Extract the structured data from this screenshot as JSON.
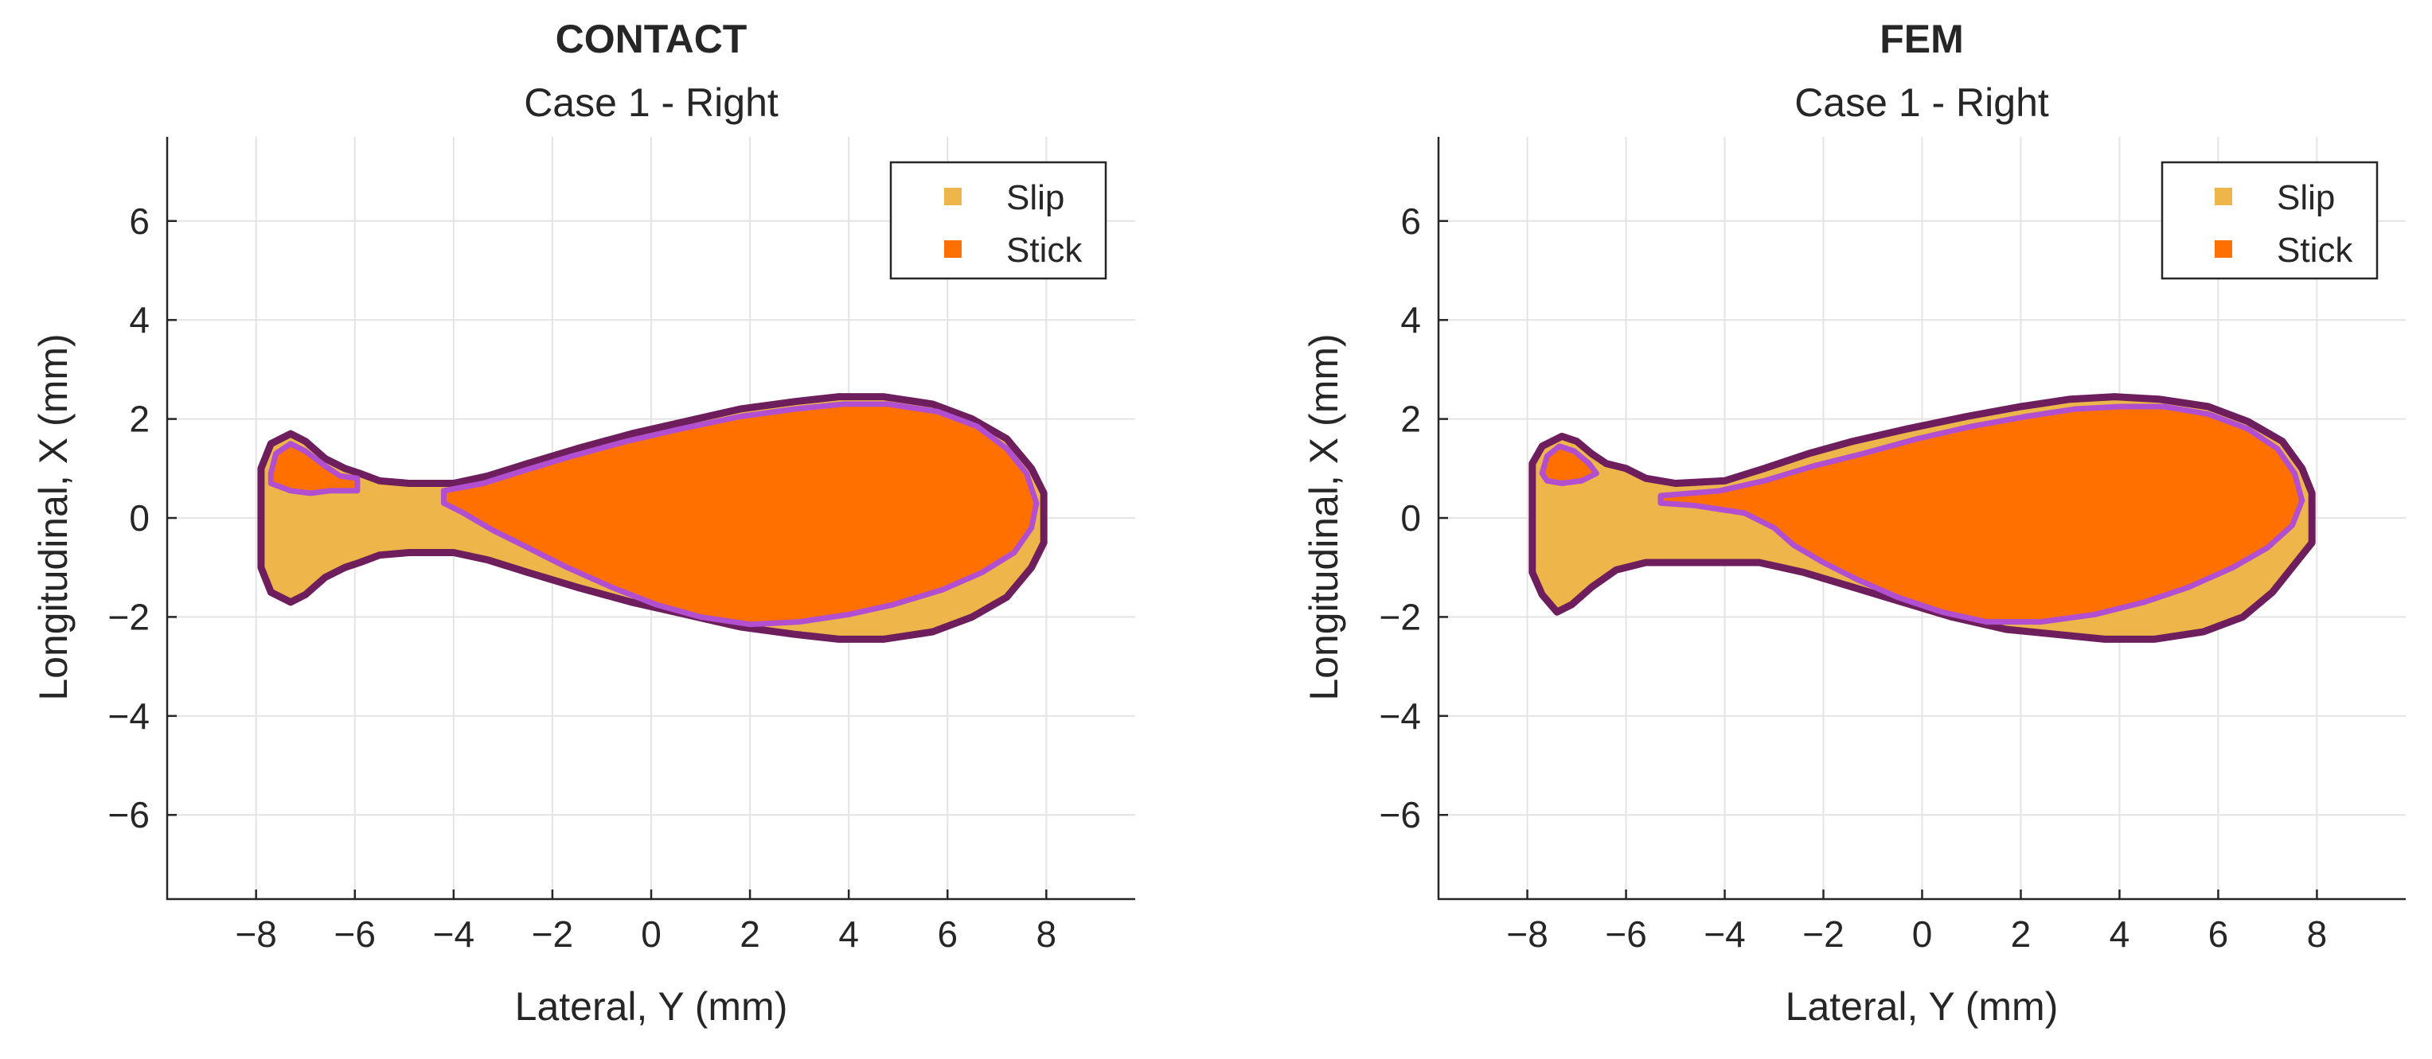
{
  "chart_data": [
    {
      "type": "scatter",
      "title": "CONTACT",
      "subtitle": "Case 1 - Right",
      "xlabel": "Lateral, Y (mm)",
      "ylabel": "Longitudinal, X (mm)",
      "xlim": [
        -9.8,
        9.8
      ],
      "ylim": [
        -7.7,
        7.7
      ],
      "xticks": [
        -8,
        -6,
        -4,
        -2,
        0,
        2,
        4,
        6,
        8
      ],
      "yticks": [
        -6,
        -4,
        -2,
        0,
        2,
        4,
        6
      ],
      "grid": true,
      "legend_position": "top-right",
      "colors": {
        "slip": "#EDB54A",
        "stick": "#FF7000",
        "outer_boundary": "#6E1E5C",
        "stick_boundary": "#B24FD0",
        "axis": "#262626"
      },
      "series": [
        {
          "name": "Slip",
          "region": "contact patch (outer boundary)",
          "boundary": [
            [
              -7.9,
              1.0
            ],
            [
              -7.7,
              1.5
            ],
            [
              -7.3,
              1.7
            ],
            [
              -7.0,
              1.55
            ],
            [
              -6.6,
              1.2
            ],
            [
              -6.2,
              1.0
            ],
            [
              -5.9,
              0.9
            ],
            [
              -5.5,
              0.75
            ],
            [
              -4.9,
              0.7
            ],
            [
              -4.0,
              0.7
            ],
            [
              -3.3,
              0.85
            ],
            [
              -2.5,
              1.1
            ],
            [
              -1.5,
              1.4
            ],
            [
              -0.4,
              1.7
            ],
            [
              0.7,
              1.95
            ],
            [
              1.8,
              2.2
            ],
            [
              2.9,
              2.35
            ],
            [
              3.8,
              2.45
            ],
            [
              4.7,
              2.45
            ],
            [
              5.7,
              2.3
            ],
            [
              6.5,
              2.0
            ],
            [
              7.2,
              1.6
            ],
            [
              7.7,
              1.0
            ],
            [
              7.95,
              0.5
            ],
            [
              7.95,
              -0.5
            ],
            [
              7.7,
              -1.0
            ],
            [
              7.2,
              -1.6
            ],
            [
              6.5,
              -2.0
            ],
            [
              5.7,
              -2.3
            ],
            [
              4.7,
              -2.45
            ],
            [
              3.8,
              -2.45
            ],
            [
              2.9,
              -2.35
            ],
            [
              1.8,
              -2.2
            ],
            [
              0.7,
              -1.95
            ],
            [
              -0.4,
              -1.7
            ],
            [
              -1.5,
              -1.4
            ],
            [
              -2.5,
              -1.1
            ],
            [
              -3.3,
              -0.85
            ],
            [
              -4.0,
              -0.7
            ],
            [
              -4.9,
              -0.7
            ],
            [
              -5.5,
              -0.75
            ],
            [
              -5.9,
              -0.9
            ],
            [
              -6.2,
              -1.0
            ],
            [
              -6.6,
              -1.2
            ],
            [
              -7.0,
              -1.55
            ],
            [
              -7.3,
              -1.7
            ],
            [
              -7.7,
              -1.5
            ],
            [
              -7.9,
              -1.0
            ]
          ]
        },
        {
          "name": "Stick",
          "regions": [
            [
              [
                -4.2,
                0.55
              ],
              [
                -3.4,
                0.7
              ],
              [
                -2.6,
                0.95
              ],
              [
                -1.6,
                1.25
              ],
              [
                -0.5,
                1.55
              ],
              [
                0.6,
                1.8
              ],
              [
                1.8,
                2.05
              ],
              [
                2.9,
                2.2
              ],
              [
                3.9,
                2.3
              ],
              [
                4.8,
                2.3
              ],
              [
                5.8,
                2.15
              ],
              [
                6.6,
                1.85
              ],
              [
                7.2,
                1.4
              ],
              [
                7.6,
                0.9
              ],
              [
                7.8,
                0.3
              ],
              [
                7.7,
                -0.2
              ],
              [
                7.35,
                -0.7
              ],
              [
                6.7,
                -1.1
              ],
              [
                5.9,
                -1.45
              ],
              [
                4.9,
                -1.75
              ],
              [
                4.0,
                -1.95
              ],
              [
                3.0,
                -2.1
              ],
              [
                2.0,
                -2.15
              ],
              [
                1.0,
                -2.0
              ],
              [
                0.1,
                -1.75
              ],
              [
                -0.8,
                -1.4
              ],
              [
                -1.7,
                -1.0
              ],
              [
                -2.5,
                -0.6
              ],
              [
                -3.2,
                -0.25
              ],
              [
                -3.8,
                0.1
              ],
              [
                -4.2,
                0.3
              ]
            ],
            [
              [
                -7.7,
                0.9
              ],
              [
                -7.6,
                1.3
              ],
              [
                -7.3,
                1.5
              ],
              [
                -7.0,
                1.35
              ],
              [
                -6.6,
                1.05
              ],
              [
                -6.3,
                0.85
              ],
              [
                -5.95,
                0.8
              ],
              [
                -5.95,
                0.55
              ],
              [
                -6.5,
                0.55
              ],
              [
                -6.9,
                0.5
              ],
              [
                -7.3,
                0.55
              ],
              [
                -7.7,
                0.7
              ]
            ]
          ]
        }
      ]
    },
    {
      "type": "scatter",
      "title": "FEM",
      "subtitle": "Case 1 - Right",
      "xlabel": "Lateral, Y (mm)",
      "ylabel": "Longitudinal, X (mm)",
      "xlim": [
        -9.8,
        9.8
      ],
      "ylim": [
        -7.7,
        7.7
      ],
      "xticks": [
        -8,
        -6,
        -4,
        -2,
        0,
        2,
        4,
        6,
        8
      ],
      "yticks": [
        -6,
        -4,
        -2,
        0,
        2,
        4,
        6
      ],
      "grid": true,
      "legend_position": "top-right",
      "colors": {
        "slip": "#EDB54A",
        "stick": "#FF7000",
        "outer_boundary": "#6E1E5C",
        "stick_boundary": "#B24FD0",
        "axis": "#262626"
      },
      "series": [
        {
          "name": "Slip",
          "region": "contact patch (outer boundary)",
          "boundary": [
            [
              -7.9,
              1.1
            ],
            [
              -7.7,
              1.45
            ],
            [
              -7.3,
              1.65
            ],
            [
              -7.0,
              1.55
            ],
            [
              -6.7,
              1.3
            ],
            [
              -6.4,
              1.1
            ],
            [
              -6.0,
              1.0
            ],
            [
              -5.6,
              0.8
            ],
            [
              -5.0,
              0.7
            ],
            [
              -4.0,
              0.75
            ],
            [
              -3.2,
              1.0
            ],
            [
              -2.3,
              1.3
            ],
            [
              -1.4,
              1.55
            ],
            [
              -0.3,
              1.8
            ],
            [
              0.9,
              2.05
            ],
            [
              2.0,
              2.25
            ],
            [
              3.0,
              2.4
            ],
            [
              3.9,
              2.45
            ],
            [
              4.8,
              2.4
            ],
            [
              5.8,
              2.25
            ],
            [
              6.6,
              1.95
            ],
            [
              7.3,
              1.55
            ],
            [
              7.7,
              1.0
            ],
            [
              7.9,
              0.5
            ],
            [
              7.9,
              -0.5
            ],
            [
              7.5,
              -1.0
            ],
            [
              7.1,
              -1.5
            ],
            [
              6.5,
              -2.0
            ],
            [
              5.7,
              -2.3
            ],
            [
              4.7,
              -2.45
            ],
            [
              3.7,
              -2.45
            ],
            [
              2.7,
              -2.35
            ],
            [
              1.7,
              -2.25
            ],
            [
              0.6,
              -2.0
            ],
            [
              -0.4,
              -1.7
            ],
            [
              -1.4,
              -1.4
            ],
            [
              -2.4,
              -1.1
            ],
            [
              -3.3,
              -0.9
            ],
            [
              -4.0,
              -0.9
            ],
            [
              -4.9,
              -0.9
            ],
            [
              -5.6,
              -0.9
            ],
            [
              -6.2,
              -1.05
            ],
            [
              -6.7,
              -1.4
            ],
            [
              -7.1,
              -1.75
            ],
            [
              -7.4,
              -1.9
            ],
            [
              -7.7,
              -1.55
            ],
            [
              -7.9,
              -1.1
            ]
          ]
        },
        {
          "name": "Stick",
          "regions": [
            [
              [
                -5.3,
                0.45
              ],
              [
                -4.1,
                0.55
              ],
              [
                -3.2,
                0.75
              ],
              [
                -2.2,
                1.05
              ],
              [
                -1.2,
                1.3
              ],
              [
                -0.1,
                1.6
              ],
              [
                1.0,
                1.85
              ],
              [
                2.1,
                2.05
              ],
              [
                3.1,
                2.2
              ],
              [
                4.0,
                2.25
              ],
              [
                4.9,
                2.25
              ],
              [
                5.8,
                2.1
              ],
              [
                6.6,
                1.8
              ],
              [
                7.2,
                1.4
              ],
              [
                7.55,
                0.9
              ],
              [
                7.7,
                0.35
              ],
              [
                7.5,
                -0.15
              ],
              [
                7.0,
                -0.6
              ],
              [
                6.3,
                -1.0
              ],
              [
                5.4,
                -1.4
              ],
              [
                4.5,
                -1.7
              ],
              [
                3.5,
                -1.95
              ],
              [
                2.4,
                -2.1
              ],
              [
                1.3,
                -2.1
              ],
              [
                0.4,
                -1.9
              ],
              [
                -0.5,
                -1.6
              ],
              [
                -1.3,
                -1.25
              ],
              [
                -2.0,
                -0.9
              ],
              [
                -2.6,
                -0.55
              ],
              [
                -3.0,
                -0.2
              ],
              [
                -3.6,
                0.1
              ],
              [
                -4.6,
                0.25
              ],
              [
                -5.3,
                0.3
              ]
            ],
            [
              [
                -7.7,
                0.9
              ],
              [
                -7.6,
                1.25
              ],
              [
                -7.35,
                1.45
              ],
              [
                -7.05,
                1.35
              ],
              [
                -6.75,
                1.1
              ],
              [
                -6.6,
                0.9
              ],
              [
                -6.9,
                0.75
              ],
              [
                -7.3,
                0.7
              ],
              [
                -7.6,
                0.75
              ]
            ]
          ]
        }
      ]
    }
  ]
}
